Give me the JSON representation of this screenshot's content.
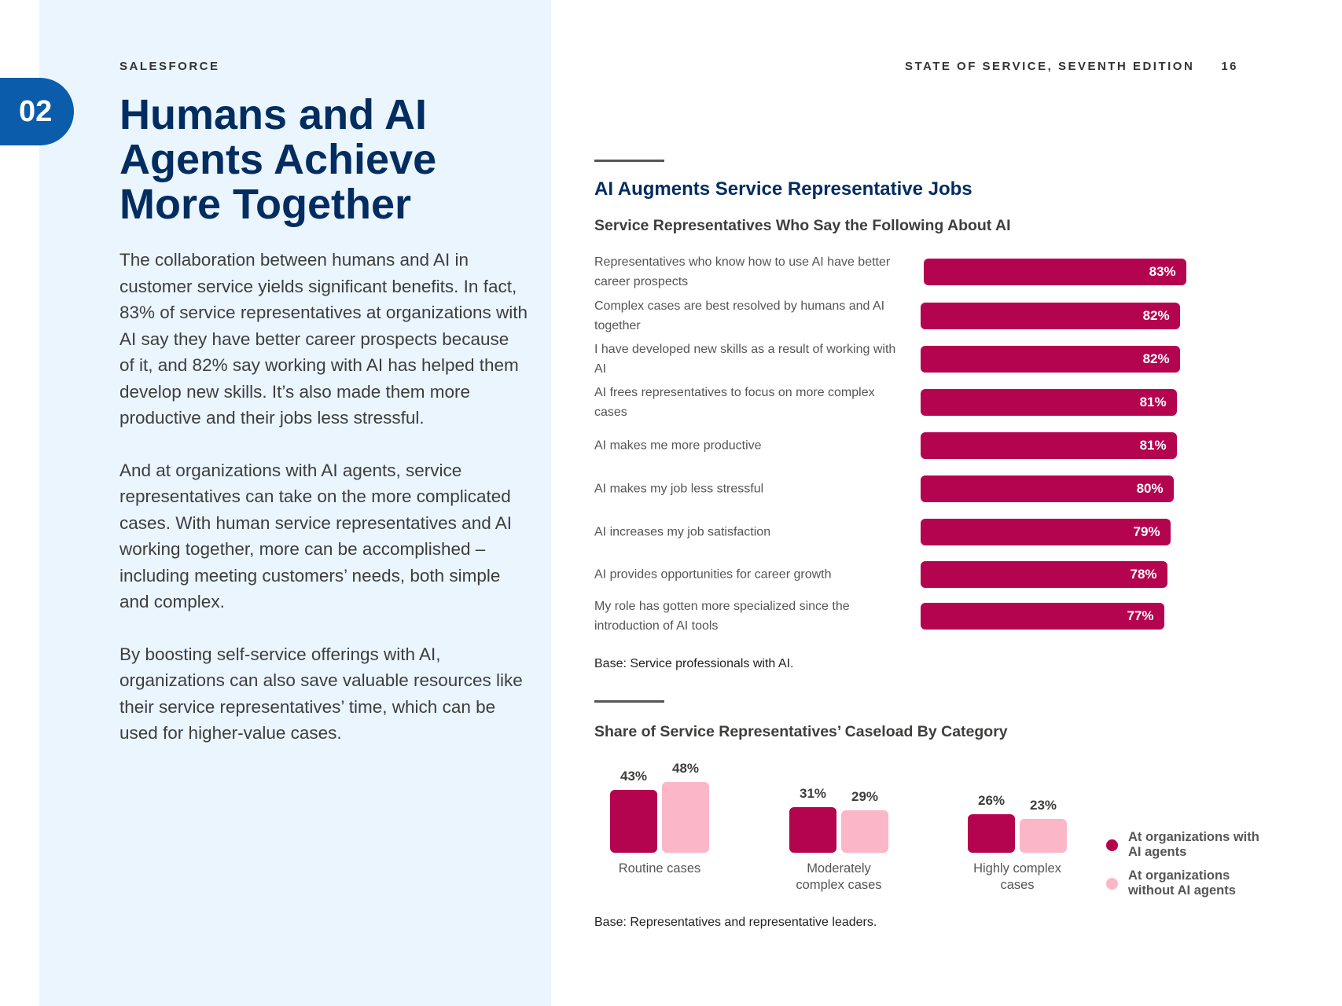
{
  "header": {
    "brand": "SALESFORCE",
    "publication": "STATE OF SERVICE, SEVENTH EDITION",
    "page_number": "16",
    "section_number": "02"
  },
  "left": {
    "title": "Humans and AI Agents Achieve More Together",
    "paragraphs": [
      "The collaboration between humans and AI in customer service yields significant benefits. In fact, 83% of service representatives at organizations with AI say they have better career prospects because of it, and 82% say working with AI has helped them develop new skills. It’s also made them more productive and their jobs less stressful.",
      "And at organizations with AI agents, service representatives can take on the more complicated cases. With human service representatives and AI working together, more can be accomplished – including meeting customers’ needs, both simple and complex.",
      "By boosting self-service offerings with AI, organizations can also save valuable resources like their service representatives’ time, which can be used for higher-value cases."
    ]
  },
  "colors": {
    "dark": "#b5044f",
    "light": "#fbb6c8",
    "navy": "#032d60",
    "badge": "#0b5cab",
    "panel": "#eaf5fe"
  },
  "chart_data": [
    {
      "type": "bar",
      "orientation": "horizontal",
      "title": "AI Augments Service Representative Jobs",
      "subtitle": "Service Representatives Who Say the Following About AI",
      "categories": [
        "Representatives who know how to use AI have better career prospects",
        "Complex cases are best resolved by humans and AI together",
        "I have developed new skills as a result of working with AI",
        "AI frees representatives to focus on more complex cases",
        "AI makes me more productive",
        "AI makes my job less stressful",
        "AI increases my job satisfaction",
        "AI provides opportunities for career growth",
        "My role has gotten more specialized since the introduction of AI tools"
      ],
      "values": [
        83,
        82,
        82,
        81,
        81,
        80,
        79,
        78,
        77
      ],
      "labels": [
        "83%",
        "82%",
        "82%",
        "81%",
        "81%",
        "80%",
        "79%",
        "78%",
        "77%"
      ],
      "note": "Base: Service professionals with AI."
    },
    {
      "type": "bar",
      "orientation": "vertical",
      "title": "Share of Service Representatives’ Caseload By Category",
      "categories": [
        "Routine cases",
        "Moderately complex cases",
        "Highly complex cases"
      ],
      "series": [
        {
          "name": "At organizations with AI agents",
          "values": [
            43,
            31,
            26
          ],
          "labels": [
            "43%",
            "31%",
            "26%"
          ]
        },
        {
          "name": "At organizations without AI agents",
          "values": [
            48,
            29,
            23
          ],
          "labels": [
            "48%",
            "29%",
            "23%"
          ]
        }
      ],
      "legend": "right",
      "note": "Base: Representatives and representative leaders."
    }
  ]
}
